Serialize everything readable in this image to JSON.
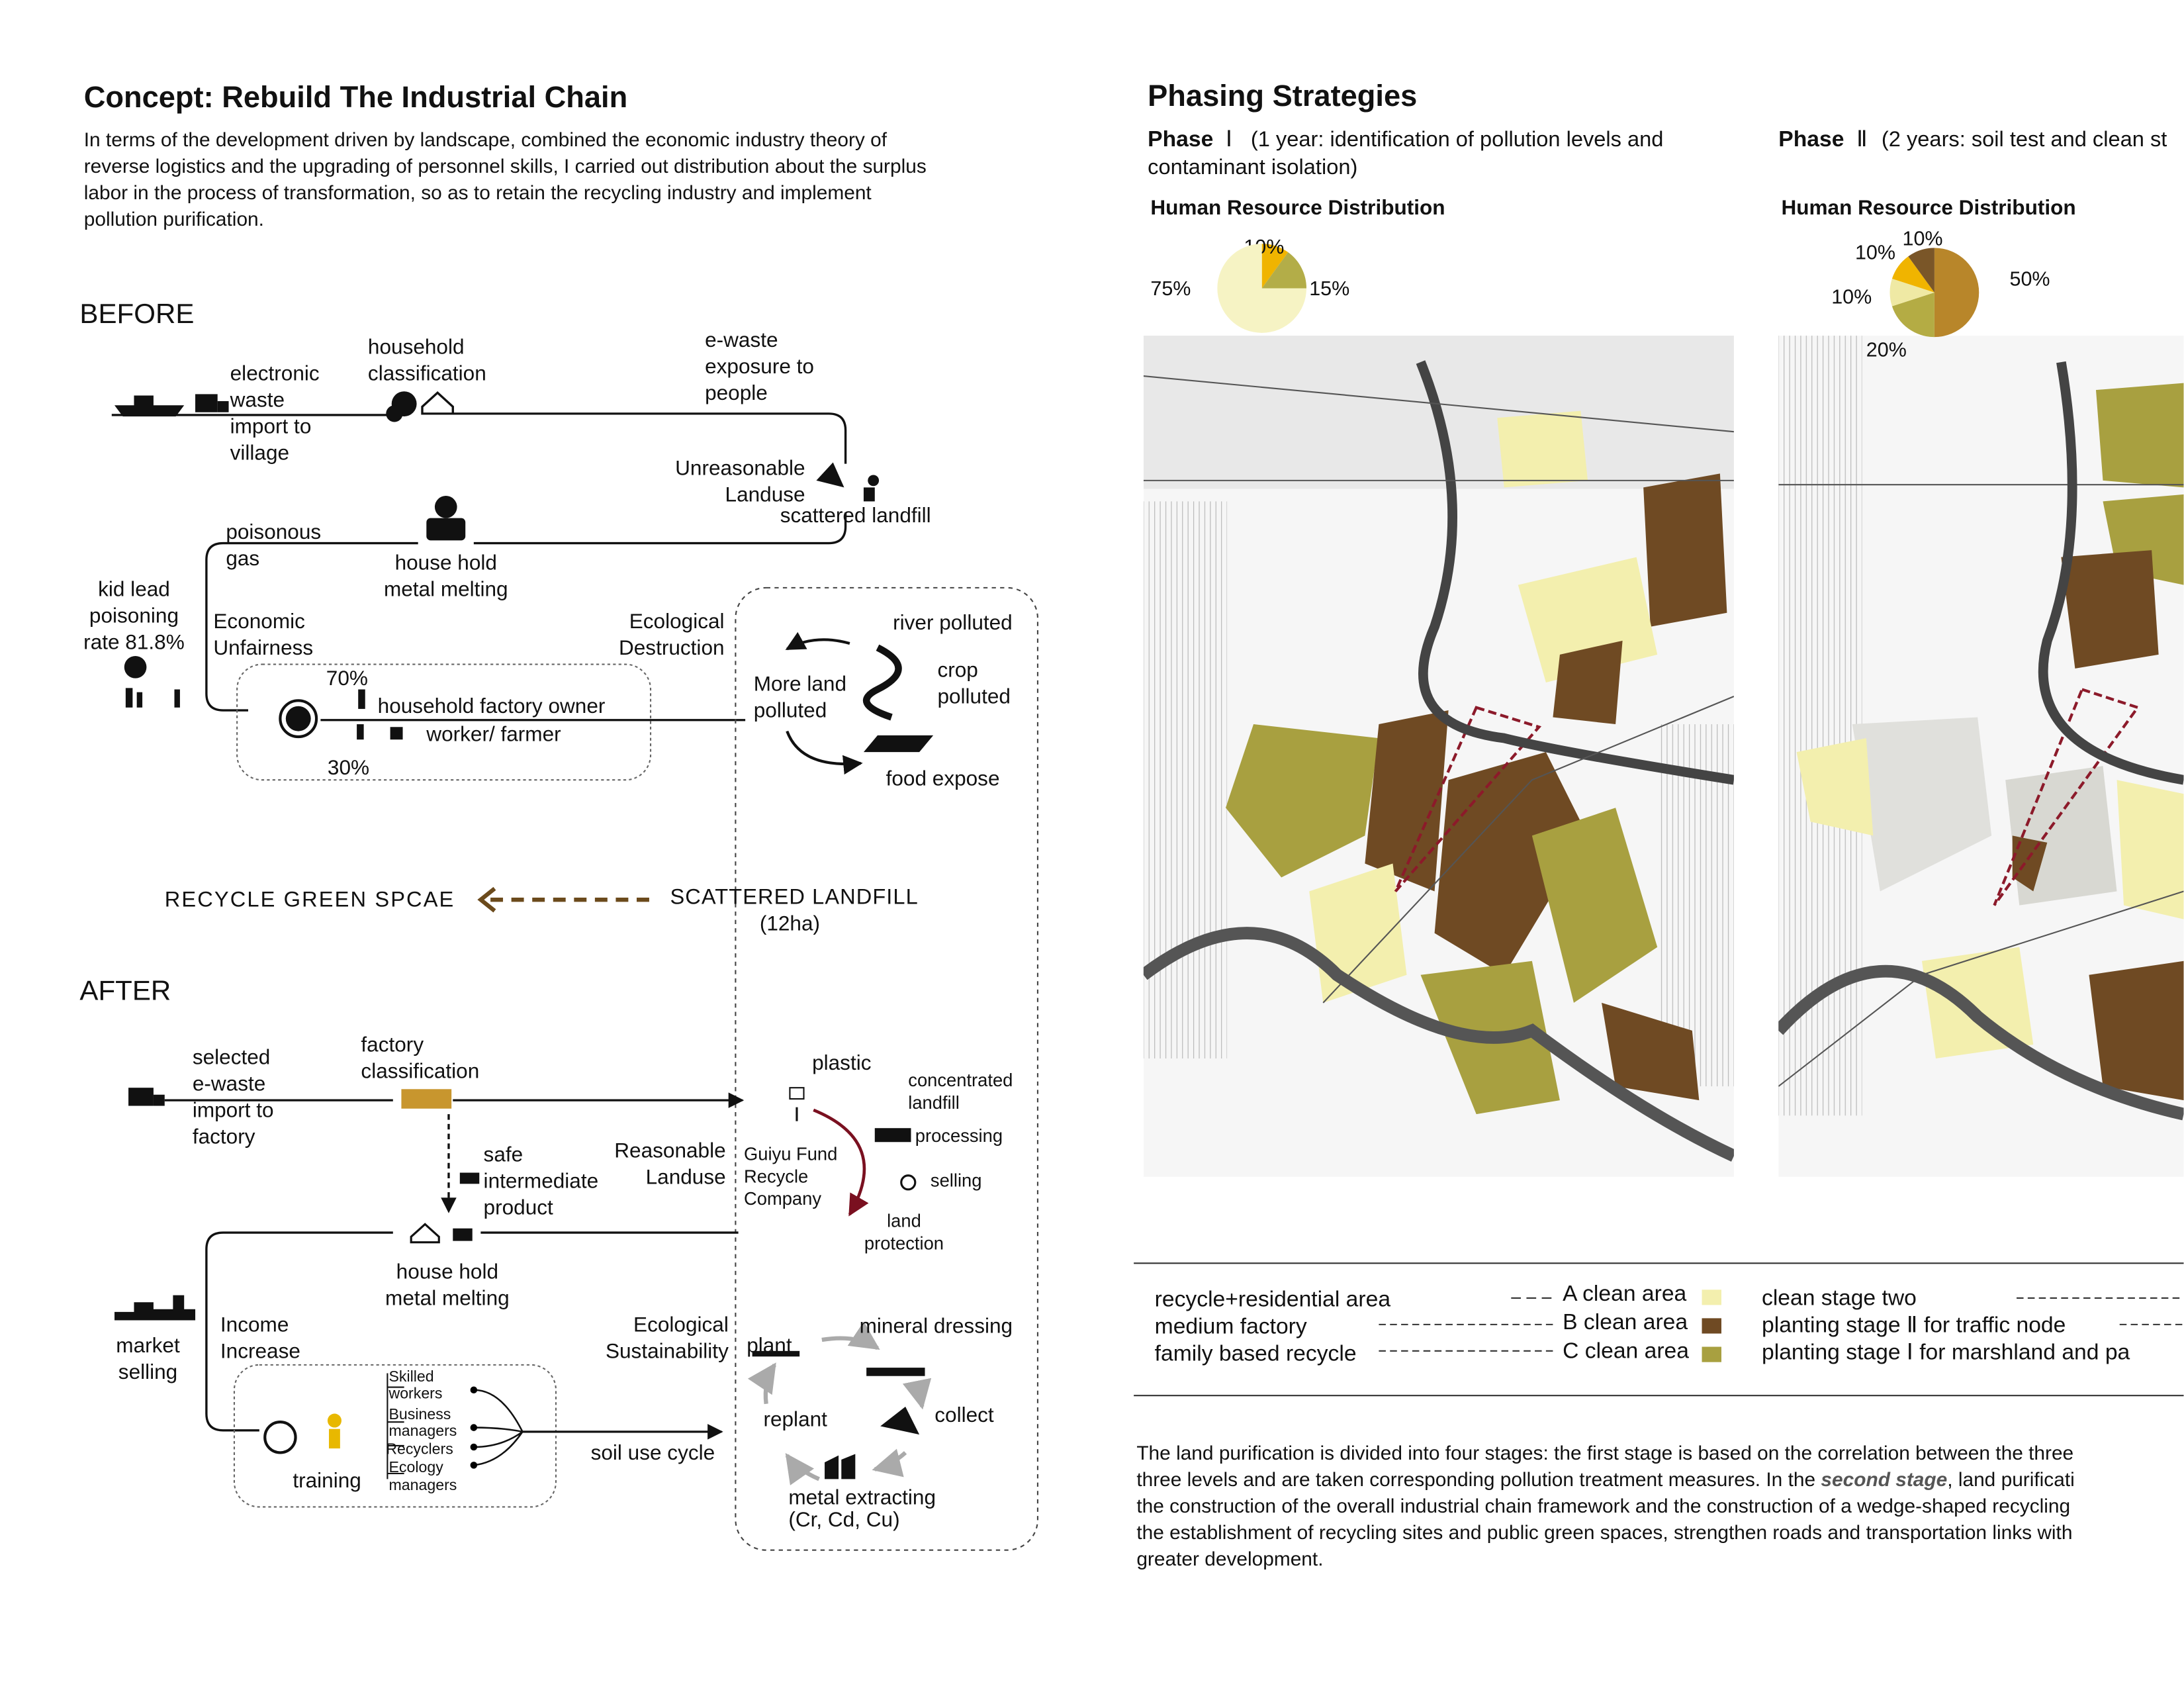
{
  "left": {
    "title": "Concept: Rebuild The Industrial Chain",
    "intro": [
      "In terms of the development driven by landscape, combined the economic industry theory of",
      "reverse logistics and the upgrading of personnel skills, I carried out distribution about the surplus",
      "labor in the process of transformation, so as to retain the recycling industry and implement",
      "pollution purification."
    ],
    "before": {
      "heading": "BEFORE",
      "labels": [
        [
          "electronic",
          "waste",
          "import to",
          "village"
        ],
        [
          "household",
          "classification"
        ],
        [
          "e-waste",
          "exposure to",
          "people"
        ],
        [
          "Unreasonable",
          "Landuse"
        ],
        [
          "scattered landfill"
        ],
        [
          "poisonous",
          "gas"
        ],
        [
          "house hold",
          "metal melting"
        ],
        [
          "kid lead",
          "poisoning",
          "rate 81.8%"
        ],
        [
          "Economic",
          "Unfairness"
        ],
        [
          "Ecological",
          "Destruction"
        ],
        [
          "river polluted"
        ],
        [
          "crop",
          "polluted"
        ],
        [
          "More land",
          "polluted"
        ],
        [
          "70%"
        ],
        [
          "household factory owner"
        ],
        [
          "worker/ farmer"
        ],
        [
          "30%"
        ],
        [
          "food expose"
        ]
      ]
    },
    "transition": {
      "from": "RECYCLE  GREEN  SPCAE",
      "to": "SCATTERED LANDFILL",
      "area": "(12ha)"
    },
    "after": {
      "heading": "AFTER",
      "labels": [
        [
          "selected",
          "e-waste",
          "import to",
          "factory"
        ],
        [
          "factory",
          "classification"
        ],
        [
          "plastic"
        ],
        [
          "concentrated",
          "landfill"
        ],
        [
          "processing"
        ],
        [
          "safe",
          "intermediate",
          "product"
        ],
        [
          "Reasonable",
          "Landuse"
        ],
        [
          "Guiyu Fund",
          "Recycle",
          "Company"
        ],
        [
          "selling"
        ],
        [
          "land",
          "protection"
        ],
        [
          "house hold",
          "metal melting"
        ],
        [
          "market",
          "selling"
        ],
        [
          "Income",
          "Increase"
        ],
        [
          "Ecological",
          "Sustainability"
        ],
        [
          "mineral dressing"
        ],
        [
          "plant"
        ],
        [
          "Skilled",
          "workers"
        ],
        [
          "Business",
          "managers"
        ],
        [
          "Recyclers"
        ],
        [
          "Ecology",
          "managers"
        ],
        [
          "collect"
        ],
        [
          "replant"
        ],
        [
          "soil use cycle"
        ],
        [
          "training"
        ],
        [
          "metal extracting",
          "(Cr, Cd, Cu)"
        ]
      ]
    }
  },
  "right": {
    "title": "Phasing Strategies",
    "phases": [
      {
        "label": "Phase",
        "numeral": "Ⅰ",
        "desc": [
          "(1 year: identification of pollution levels and",
          "contaminant isolation)"
        ],
        "pie": {
          "type": "pie",
          "title": "Human Resource Distribution",
          "values": [
            10,
            15,
            75
          ],
          "value_labels": [
            "10%",
            "15%",
            "75%"
          ],
          "colors": [
            "#f0b400",
            "#b3ad48",
            "#f6f3c4"
          ]
        }
      },
      {
        "label": "Phase",
        "numeral": "Ⅱ",
        "desc": [
          "(2 years: soil test and clean st"
        ],
        "pie": {
          "type": "pie",
          "title": "Human Resource Distribution",
          "values": [
            50,
            20,
            10,
            10,
            10
          ],
          "value_labels": [
            "50%",
            "20%",
            "10%",
            "10%",
            "10%"
          ],
          "colors": [
            "#b8862a",
            "#b4ac44",
            "#efe9a4",
            "#f0b400",
            "#7a5628"
          ]
        }
      }
    ],
    "legend": {
      "lines": [
        "recycle+residential area",
        "medium factory",
        "family based recycle"
      ],
      "areas": [
        {
          "name": "A clean area",
          "color": "#f3efae"
        },
        {
          "name": "B clean area",
          "color": "#6f4a23"
        },
        {
          "name": "C clean area",
          "color": "#a8a040"
        }
      ],
      "stages": [
        "clean stage two",
        "planting  stage Ⅱ for traffic node",
        "planting  stage Ⅰ for marshland and pa"
      ]
    },
    "description": [
      [
        "The land purification is divided into four stages: the first stage is based on the correlation between the three"
      ],
      [
        "three levels and are taken corresponding pollution treatment measures. In the ",
        "second stage",
        ", land purificati"
      ],
      [
        "the construction of the overall industrial chain framework and the construction of a wedge-shaped recycling"
      ],
      [
        "the establishment of recycling sites and public green spaces, strengthen roads and transportation links with"
      ],
      [
        "greater development."
      ]
    ]
  }
}
